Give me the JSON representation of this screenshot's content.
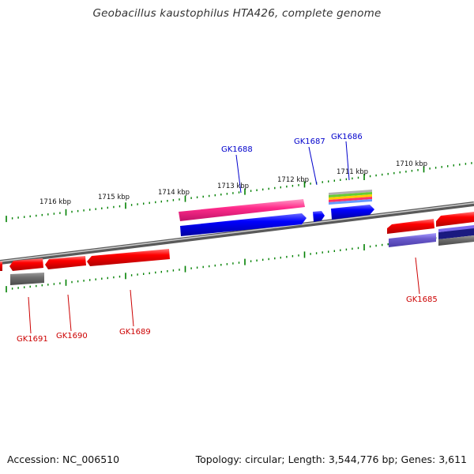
{
  "title": "Geobacillus kaustophilus HTA426, complete genome",
  "footer": {
    "accession": "Accession: NC_006510",
    "summary": "Topology: circular; Length: 3,544,776 bp; Genes: 3,611"
  },
  "scale_labels": [
    "1716 kbp",
    "1715 kbp",
    "1714 kbp",
    "1713 kbp",
    "1712 kbp",
    "1711 kbp",
    "1710 kbp"
  ],
  "gene_labels": {
    "top": [
      "GK1688",
      "GK1687",
      "GK1686"
    ],
    "bottom": [
      "GK1691",
      "GK1690",
      "GK1689",
      "GK1685"
    ]
  },
  "colors": {
    "forward_label": "#0000cc",
    "reverse_label": "#cc0000",
    "tick": "#008000",
    "backbone": "#7a7a7a"
  }
}
